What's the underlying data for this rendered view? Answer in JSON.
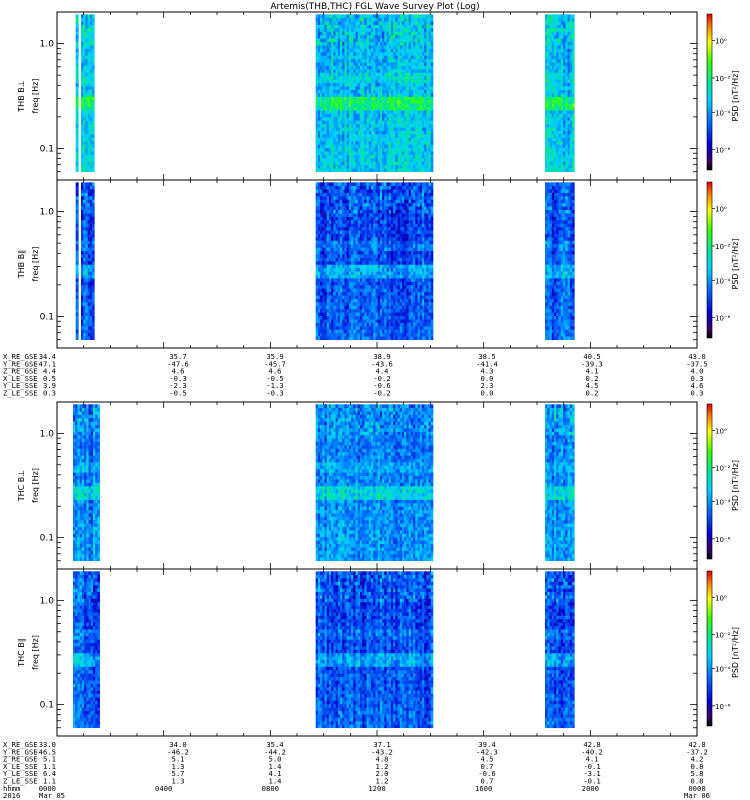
{
  "chart_data": {
    "type": "heatmap",
    "title": "Artemis(THB,THC) FGL Wave Survey Plot (Log)",
    "yscale": "log",
    "ylim": [
      0.05,
      2.0
    ],
    "y_ticks": [
      "1.0",
      "0.1"
    ],
    "colorbar_label": "PSD [nT²/Hz]",
    "colorbar_ticks": [
      "10⁰",
      "10⁻²",
      "10⁻⁴",
      "10⁻⁶"
    ],
    "panels": [
      {
        "probe": "THB",
        "ylabel_top": "THB B⊥",
        "ylabel_bottom": "freq [Hz]",
        "coverage_hours": [
          [
            0.7,
            0.8
          ],
          [
            0.9,
            1.4
          ],
          [
            9.7,
            14.1
          ],
          [
            18.3,
            19.4
          ]
        ],
        "level": "high"
      },
      {
        "probe": "THB",
        "ylabel_top": "THB B∥",
        "ylabel_bottom": "freq [Hz]",
        "coverage_hours": [
          [
            0.7,
            0.8
          ],
          [
            0.9,
            1.4
          ],
          [
            9.7,
            14.1
          ],
          [
            18.3,
            19.4
          ]
        ],
        "level": "low"
      },
      {
        "probe": "THC",
        "ylabel_top": "THC B⊥",
        "ylabel_bottom": "freq [Hz]",
        "coverage_hours": [
          [
            0.6,
            1.6
          ],
          [
            9.7,
            14.1
          ],
          [
            18.3,
            19.4
          ]
        ],
        "level": "mid"
      },
      {
        "probe": "THC",
        "ylabel_top": "THC B∥",
        "ylabel_bottom": "freq [Hz]",
        "coverage_hours": [
          [
            0.6,
            1.6
          ],
          [
            9.7,
            14.1
          ],
          [
            18.3,
            19.4
          ]
        ],
        "level": "low"
      }
    ],
    "ephemeris_thb": {
      "labels": [
        "X_RE_GSE",
        "Y_RE_GSE",
        "Z_RE_GSE",
        "X_LE_SSE",
        "Y_LE_SSE",
        "Z_LE_SSE"
      ],
      "columns": [
        [
          "34.4",
          "-47.1",
          "4.4",
          "0.5",
          "3.9",
          "0.3"
        ],
        [
          "35.7",
          "-47.6",
          "4.6",
          "-0.3",
          "-2.3",
          "-0.5"
        ],
        [
          "35.9",
          "-45.7",
          "4.6",
          "-0.5",
          "-1.3",
          "-0.3"
        ],
        [
          "38.9",
          "-43.6",
          "4.4",
          "-0.2",
          "-0.6",
          "-0.2"
        ],
        [
          "38.5",
          "-41.4",
          "4.3",
          "0.0",
          "2.3",
          "0.0"
        ],
        [
          "40.5",
          "-39.3",
          "4.1",
          "0.2",
          "4.5",
          "0.2"
        ],
        [
          "43.0",
          "-37.5",
          "4.0",
          "0.3",
          "4.6",
          "0.3"
        ]
      ]
    },
    "ephemeris_thc": {
      "labels": [
        "X_RE_GSE",
        "Y_RE_GSE",
        "Z_RE_GSE",
        "X_LE_SSE",
        "Y_LE_SSE",
        "Z_LE_SSE"
      ],
      "columns": [
        [
          "33.0",
          "-46.5",
          "5.1",
          "1.1",
          "6.4",
          "1.1"
        ],
        [
          "34.0",
          "-46.2",
          "5.1",
          "1.3",
          "5.7",
          "1.3"
        ],
        [
          "35.4",
          "-44.2",
          "5.0",
          "1.4",
          "4.1",
          "1.4"
        ],
        [
          "37.1",
          "-43.2",
          "4.8",
          "1.2",
          "2.0",
          "1.2"
        ],
        [
          "39.4",
          "-42.3",
          "4.5",
          "0.7",
          "-0.6",
          "0.7"
        ],
        [
          "42.8",
          "-40.2",
          "4.1",
          "-0.1",
          "-3.1",
          "-0.1"
        ],
        [
          "42.8",
          "-37.2",
          "4.2",
          "0.8",
          "5.8",
          "0.8"
        ]
      ]
    },
    "time_axis": {
      "label_hhmm": "hhmm",
      "label_year": "2016",
      "ticks_hhmm": [
        "0000",
        "0400",
        "0800",
        "1200",
        "1600",
        "2000",
        "0000"
      ],
      "date_start": "Mar 05",
      "date_end": "Mar 06"
    }
  }
}
